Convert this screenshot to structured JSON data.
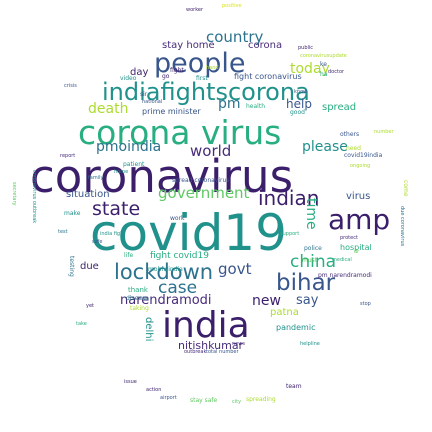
{
  "palette": {
    "navy": "#3b1f6b",
    "purple": "#472c7a",
    "indigo": "#39568c",
    "blue": "#2c728e",
    "teal": "#21918c",
    "seafoam": "#28ae80",
    "green": "#5ec962",
    "lime": "#addc30",
    "yellow": "#d8e219"
  },
  "words": [
    {
      "text": "coronavirus",
      "color": "navy"
    },
    {
      "text": "covid19",
      "color": "teal"
    },
    {
      "text": "corona virus",
      "color": "seafoam"
    },
    {
      "text": "india",
      "color": "navy"
    },
    {
      "text": "people",
      "color": "indigo"
    },
    {
      "text": "indiafightscorona",
      "color": "teal"
    },
    {
      "text": "amp",
      "color": "navy"
    },
    {
      "text": "lockdown",
      "color": "blue"
    },
    {
      "text": "bihar",
      "color": "indigo"
    },
    {
      "text": "state",
      "color": "navy"
    },
    {
      "text": "indian",
      "color": "navy"
    },
    {
      "text": "china",
      "color": "seafoam"
    },
    {
      "text": "case",
      "color": "blue"
    },
    {
      "text": "government",
      "color": "green"
    },
    {
      "text": "narendramodi",
      "color": "purple"
    },
    {
      "text": "new",
      "color": "navy"
    },
    {
      "text": "say",
      "color": "indigo"
    },
    {
      "text": "world",
      "color": "purple"
    },
    {
      "text": "country",
      "color": "blue"
    },
    {
      "text": "today",
      "color": "lime"
    },
    {
      "text": "death",
      "color": "lime"
    },
    {
      "text": "pmoindia",
      "color": "blue"
    },
    {
      "text": "please",
      "color": "teal"
    },
    {
      "text": "govt",
      "color": "indigo"
    },
    {
      "text": "time",
      "color": "seafoam"
    },
    {
      "text": "nitishkumar",
      "color": "purple"
    },
    {
      "text": "help",
      "color": "indigo"
    },
    {
      "text": "pm",
      "color": "blue"
    },
    {
      "text": "situation",
      "color": "indigo"
    },
    {
      "text": "spread",
      "color": "seafoam"
    },
    {
      "text": "virus",
      "color": "indigo"
    },
    {
      "text": "stay home",
      "color": "purple"
    },
    {
      "text": "corona",
      "color": "purple"
    },
    {
      "text": "fight coronavirus",
      "color": "indigo"
    },
    {
      "text": "fight covid19",
      "color": "seafoam"
    },
    {
      "text": "patna",
      "color": "lime"
    },
    {
      "text": "delhi",
      "color": "teal"
    },
    {
      "text": "day",
      "color": "navy"
    },
    {
      "text": "prime minister",
      "color": "indigo"
    },
    {
      "text": "due",
      "color": "navy"
    },
    {
      "text": "pandemic",
      "color": "teal"
    },
    {
      "text": "thank",
      "color": "seafoam"
    },
    {
      "text": "hospital",
      "color": "seafoam"
    },
    {
      "text": "stay safe",
      "color": "green"
    },
    {
      "text": "spreading",
      "color": "lime"
    },
    {
      "text": "team",
      "color": "navy"
    },
    {
      "text": "mohfwindia",
      "color": "teal"
    },
    {
      "text": "covid19india",
      "color": "indigo"
    },
    {
      "text": "disease",
      "color": "blue"
    },
    {
      "text": "make",
      "color": "teal"
    },
    {
      "text": "need",
      "color": "lime"
    },
    {
      "text": "first",
      "color": "teal"
    },
    {
      "text": "health",
      "color": "seafoam"
    },
    {
      "text": "issue",
      "color": "navy"
    },
    {
      "text": "spread coronavirus",
      "color": "indigo"
    },
    {
      "text": "others",
      "color": "indigo"
    },
    {
      "text": "patient",
      "color": "teal"
    },
    {
      "text": "fight",
      "color": "navy"
    },
    {
      "text": "testing",
      "color": "blue"
    },
    {
      "text": "taking",
      "color": "lime"
    },
    {
      "text": "work",
      "color": "indigo"
    },
    {
      "text": "video",
      "color": "teal"
    },
    {
      "text": "life",
      "color": "seafoam"
    },
    {
      "text": "police",
      "color": "blue"
    },
    {
      "text": "must",
      "color": "green"
    },
    {
      "text": "come",
      "color": "lime"
    },
    {
      "text": "worker",
      "color": "navy"
    },
    {
      "text": "stop",
      "color": "indigo"
    },
    {
      "text": "outbreak",
      "color": "purple"
    },
    {
      "text": "good",
      "color": "teal"
    },
    {
      "text": "public",
      "color": "navy"
    },
    {
      "text": "due coronavirus",
      "color": "blue"
    },
    {
      "text": "news",
      "color": "purple"
    },
    {
      "text": "city",
      "color": "green"
    },
    {
      "text": "positive",
      "color": "yellow"
    },
    {
      "text": "action",
      "color": "navy"
    },
    {
      "text": "airport",
      "color": "indigo"
    },
    {
      "text": "total number",
      "color": "indigo"
    },
    {
      "text": "protect",
      "color": "purple"
    },
    {
      "text": "pm narendramodi",
      "color": "purple"
    },
    {
      "text": "ke",
      "color": "indigo"
    },
    {
      "text": "ha",
      "color": "seafoam"
    },
    {
      "text": "national",
      "color": "indigo"
    },
    {
      "text": "sir",
      "color": "indigo"
    },
    {
      "text": "coronavirusupdate",
      "color": "lime"
    },
    {
      "text": "go",
      "color": "navy"
    },
    {
      "text": "coronavirus outbreak",
      "color": "teal"
    },
    {
      "text": "secretary",
      "color": "green"
    },
    {
      "text": "family",
      "color": "blue"
    },
    {
      "text": "hand",
      "color": "lime"
    },
    {
      "text": "medical",
      "color": "seafoam"
    },
    {
      "text": "india fight",
      "color": "teal"
    },
    {
      "text": "yet",
      "color": "navy"
    },
    {
      "text": "test",
      "color": "blue"
    },
    {
      "text": "safe",
      "color": "indigo"
    },
    {
      "text": "support",
      "color": "seafoam"
    },
    {
      "text": "doctor",
      "color": "purple"
    },
    {
      "text": "ongoing",
      "color": "lime"
    },
    {
      "text": "home",
      "color": "teal"
    },
    {
      "text": "know",
      "color": "indigo"
    },
    {
      "text": "take",
      "color": "seafoam"
    },
    {
      "text": "dr",
      "color": "green"
    },
    {
      "text": "report",
      "color": "purple"
    },
    {
      "text": "helpline",
      "color": "teal"
    },
    {
      "text": "crisis",
      "color": "indigo"
    },
    {
      "text": "number",
      "color": "lime"
    }
  ]
}
